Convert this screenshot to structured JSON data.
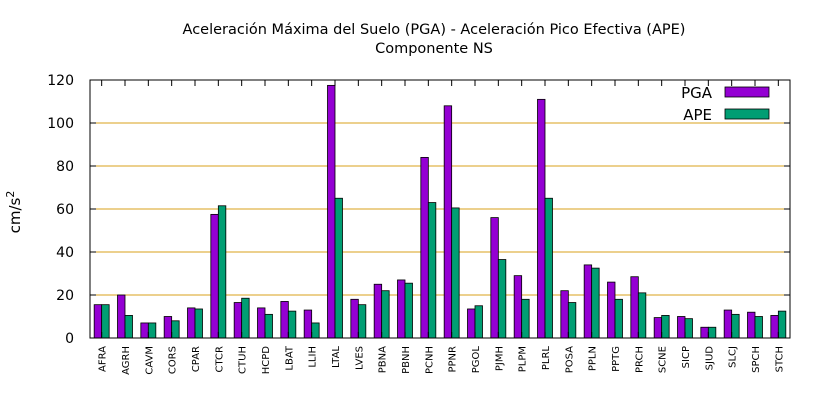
{
  "chart_data": {
    "type": "bar",
    "title": "Aceleración Máxima del Suelo (PGA) -  Aceleración Pico Efectiva (APE)",
    "subtitle": "Componente NS",
    "ylabel": "cm/s",
    "ylabel_superscript": "2",
    "xlabel": "",
    "ylim": [
      0,
      120
    ],
    "yticks": [
      0,
      20,
      40,
      60,
      80,
      100,
      120
    ],
    "grid": "horizontal",
    "legend_position": "top-right",
    "categories": [
      "AFRA",
      "AGRH",
      "CAVM",
      "CORS",
      "CPAR",
      "CTCR",
      "CTUH",
      "HCPD",
      "LBAT",
      "LLIH",
      "LTAL",
      "LVES",
      "PBNA",
      "PBNH",
      "PCNH",
      "PPNR",
      "PGOL",
      "PJMH",
      "PLPM",
      "PLRL",
      "POSA",
      "PPLN",
      "PPTG",
      "PRCH",
      "SCNE",
      "SICP",
      "SJUD",
      "SLCJ",
      "SPCH",
      "STCH"
    ],
    "series": [
      {
        "name": "PGA",
        "color": "#9400d3",
        "values": [
          15.5,
          20,
          7,
          10,
          14,
          57.5,
          16.5,
          14,
          17,
          13,
          117.5,
          18,
          25,
          27,
          84,
          108,
          13.5,
          56,
          29,
          111,
          22,
          34,
          26,
          28.5,
          9.5,
          10,
          5,
          13,
          12,
          10.5
        ]
      },
      {
        "name": "APE",
        "color": "#009e73",
        "values": [
          15.5,
          10.5,
          7,
          8,
          13.5,
          61.5,
          18.5,
          11,
          12.5,
          7,
          65,
          15.5,
          22,
          25.5,
          63,
          60.5,
          15,
          36.5,
          18,
          65,
          16.5,
          32.5,
          18,
          21,
          10.5,
          9,
          5,
          11,
          10,
          12.5
        ]
      }
    ]
  }
}
